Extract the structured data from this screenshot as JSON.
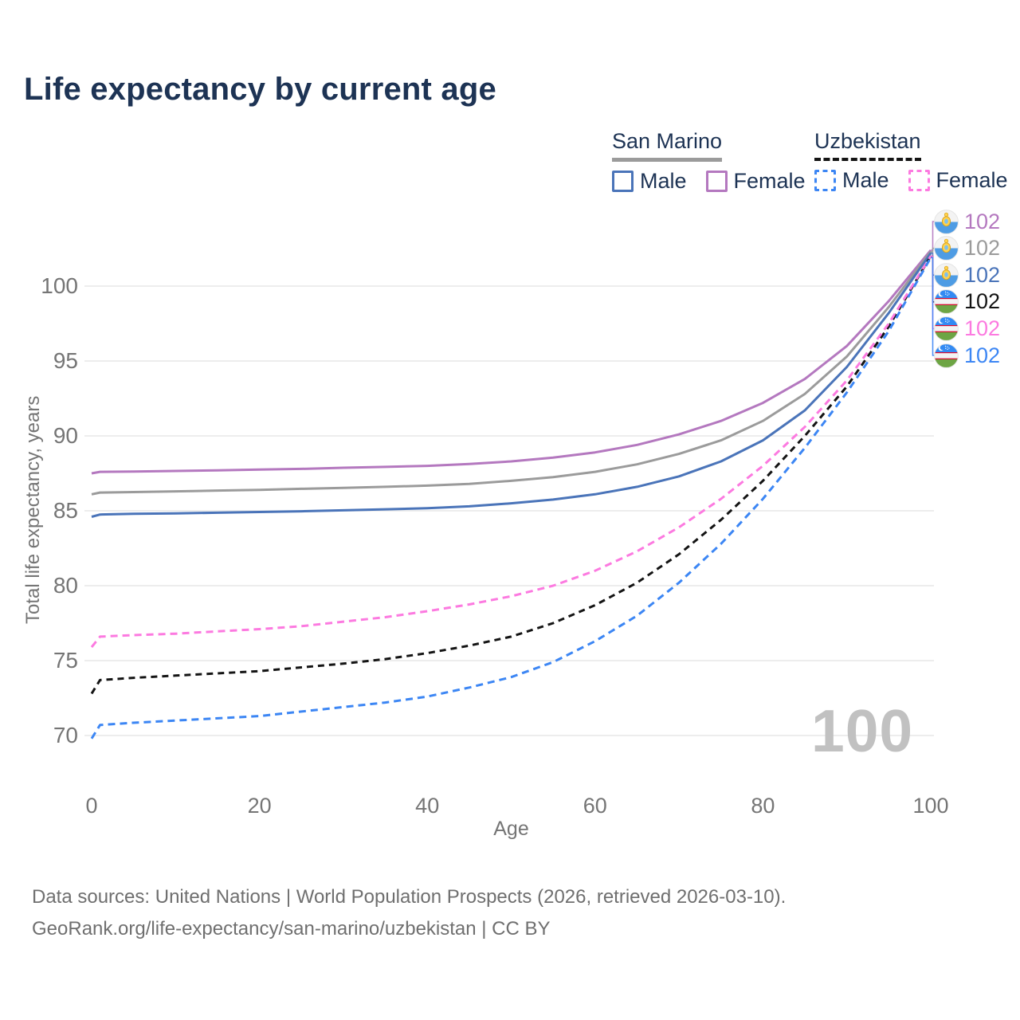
{
  "title": "Life expectancy by current age",
  "legend": {
    "groups": [
      {
        "name": "San Marino",
        "underline_style": "solid",
        "underline_color": "#9b9b9b",
        "items": [
          {
            "label": "Male",
            "color": "#4a74b9",
            "box_style": "solid"
          },
          {
            "label": "Female",
            "color": "#b478bf",
            "box_style": "solid"
          }
        ]
      },
      {
        "name": "Uzbekistan",
        "underline_style": "dashed",
        "underline_color": "#141414",
        "items": [
          {
            "label": "Male",
            "color": "#3c86f4",
            "box_style": "dashed"
          },
          {
            "label": "Female",
            "color": "#fc7ae0",
            "box_style": "dashed"
          }
        ]
      }
    ]
  },
  "axes": {
    "y_title": "Total life expectancy, years",
    "x_title": "Age"
  },
  "watermark": {
    "current_age": "100"
  },
  "chart_data": {
    "type": "line",
    "title": "Life expectancy by current age",
    "xlabel": "Age",
    "ylabel": "Total life expectancy, years",
    "xlim": [
      0,
      100
    ],
    "ylim": [
      68.5,
      103
    ],
    "xticks": [
      0,
      20,
      40,
      60,
      80,
      100
    ],
    "yticks": [
      70,
      75,
      80,
      85,
      90,
      95,
      100
    ],
    "grid": "horizontal",
    "legend_position": "top-right",
    "x": [
      0,
      1,
      5,
      10,
      15,
      20,
      25,
      30,
      35,
      40,
      45,
      50,
      55,
      60,
      65,
      70,
      75,
      80,
      85,
      90,
      95,
      100
    ],
    "series": [
      {
        "name": "San Marino Female",
        "country": "San Marino",
        "sex": "Female",
        "color": "#b478bf",
        "dash": "solid",
        "flag": "san-marino",
        "end_label": "102",
        "values": [
          87.5,
          87.6,
          87.62,
          87.66,
          87.7,
          87.75,
          87.8,
          87.87,
          87.93,
          88.0,
          88.13,
          88.3,
          88.55,
          88.9,
          89.4,
          90.1,
          91.0,
          92.2,
          93.8,
          96.0,
          99.0,
          102.4
        ]
      },
      {
        "name": "San Marino Both sexes",
        "country": "San Marino",
        "sex": "Both",
        "color": "#9b9b9b",
        "dash": "solid",
        "flag": "san-marino",
        "end_label": "102",
        "values": [
          86.1,
          86.22,
          86.25,
          86.3,
          86.35,
          86.4,
          86.47,
          86.53,
          86.6,
          86.68,
          86.8,
          87.0,
          87.25,
          87.6,
          88.1,
          88.8,
          89.7,
          91.0,
          92.8,
          95.3,
          98.6,
          102.3
        ]
      },
      {
        "name": "San Marino Male",
        "country": "San Marino",
        "sex": "Male",
        "color": "#4a74b9",
        "dash": "solid",
        "flag": "san-marino",
        "end_label": "102",
        "values": [
          84.6,
          84.75,
          84.8,
          84.83,
          84.87,
          84.92,
          84.97,
          85.03,
          85.1,
          85.17,
          85.3,
          85.5,
          85.75,
          86.1,
          86.6,
          87.3,
          88.3,
          89.7,
          91.7,
          94.6,
          98.2,
          102.2
        ]
      },
      {
        "name": "Uzbekistan Both sexes",
        "country": "Uzbekistan",
        "sex": "Both",
        "color": "#141414",
        "dash": "dashed",
        "flag": "uzbekistan",
        "end_label": "102",
        "values": [
          72.8,
          73.7,
          73.85,
          74.0,
          74.15,
          74.3,
          74.55,
          74.8,
          75.1,
          75.5,
          76.0,
          76.6,
          77.5,
          78.7,
          80.2,
          82.1,
          84.4,
          87.0,
          90.0,
          93.3,
          97.3,
          102.0
        ]
      },
      {
        "name": "Uzbekistan Female",
        "country": "Uzbekistan",
        "sex": "Female",
        "color": "#fc7ae0",
        "dash": "dashed",
        "flag": "uzbekistan",
        "end_label": "102",
        "values": [
          75.9,
          76.6,
          76.7,
          76.8,
          76.95,
          77.1,
          77.3,
          77.6,
          77.9,
          78.3,
          78.75,
          79.3,
          80.0,
          81.0,
          82.3,
          83.9,
          85.8,
          88.0,
          90.6,
          93.7,
          97.5,
          102.0
        ]
      },
      {
        "name": "Uzbekistan Male",
        "country": "Uzbekistan",
        "sex": "Male",
        "color": "#3c86f4",
        "dash": "dashed",
        "flag": "uzbekistan",
        "end_label": "102",
        "values": [
          69.8,
          70.7,
          70.85,
          71.0,
          71.15,
          71.3,
          71.6,
          71.9,
          72.2,
          72.6,
          73.2,
          73.9,
          74.9,
          76.3,
          78.0,
          80.2,
          82.8,
          85.8,
          89.2,
          92.9,
          97.0,
          101.9
        ]
      }
    ]
  },
  "footer": {
    "line1": "Data sources: United Nations | World Population Prospects (2026, retrieved 2026-03-10).",
    "line2": "GeoRank.org/life-expectancy/san-marino/uzbekistan | CC BY"
  }
}
